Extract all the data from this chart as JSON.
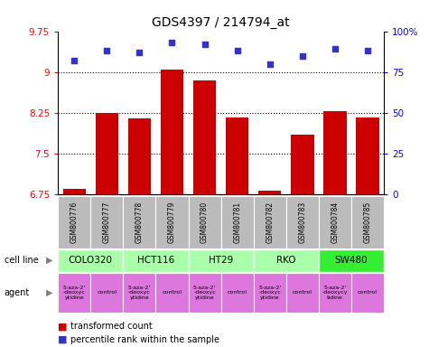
{
  "title": "GDS4397 / 214794_at",
  "samples": [
    "GSM800776",
    "GSM800777",
    "GSM800778",
    "GSM800779",
    "GSM800780",
    "GSM800781",
    "GSM800782",
    "GSM800783",
    "GSM800784",
    "GSM800785"
  ],
  "bar_values": [
    6.85,
    8.25,
    8.15,
    9.05,
    8.85,
    8.17,
    6.82,
    7.85,
    8.28,
    8.17
  ],
  "dot_values": [
    82,
    88,
    87,
    93,
    92,
    88,
    80,
    85,
    89,
    88
  ],
  "ylim_left": [
    6.75,
    9.75
  ],
  "ylim_right": [
    0,
    100
  ],
  "yticks_left": [
    6.75,
    7.5,
    8.25,
    9.0,
    9.75
  ],
  "yticks_right": [
    0,
    25,
    50,
    75,
    100
  ],
  "ytick_labels_left": [
    "6.75",
    "7.5",
    "8.25",
    "9",
    "9.75"
  ],
  "ytick_labels_right": [
    "0",
    "25",
    "50",
    "75",
    "100%"
  ],
  "hlines": [
    9.0,
    8.25,
    7.5
  ],
  "bar_color": "#cc0000",
  "dot_color": "#3333cc",
  "bar_width": 0.7,
  "cell_lines": [
    {
      "name": "COLO320",
      "start": 0,
      "end": 1,
      "color": "#aaffaa"
    },
    {
      "name": "HCT116",
      "start": 2,
      "end": 3,
      "color": "#aaffaa"
    },
    {
      "name": "HT29",
      "start": 4,
      "end": 5,
      "color": "#aaffaa"
    },
    {
      "name": "RKO",
      "start": 6,
      "end": 7,
      "color": "#aaffaa"
    },
    {
      "name": "SW480",
      "start": 8,
      "end": 9,
      "color": "#33ee33"
    }
  ],
  "agents": [
    {
      "name": "5-aza-2'\n-deoxyc\nytidine",
      "color": "#dd77dd",
      "col": 0
    },
    {
      "name": "control",
      "color": "#dd77dd",
      "col": 1
    },
    {
      "name": "5-aza-2'\n-deoxyc\nytidine",
      "color": "#dd77dd",
      "col": 2
    },
    {
      "name": "control",
      "color": "#dd77dd",
      "col": 3
    },
    {
      "name": "5-aza-2'\n-deoxyc\nytidine",
      "color": "#dd77dd",
      "col": 4
    },
    {
      "name": "control",
      "color": "#dd77dd",
      "col": 5
    },
    {
      "name": "5-aza-2'\n-deoxyc\nytidine",
      "color": "#dd77dd",
      "col": 6
    },
    {
      "name": "control",
      "color": "#dd77dd",
      "col": 7
    },
    {
      "name": "5-aza-2'\n-deoxycy\ntidine",
      "color": "#dd77dd",
      "col": 8
    },
    {
      "name": "control",
      "color": "#dd77dd",
      "col": 9
    }
  ],
  "sample_bg_color": "#bbbbbb",
  "legend_red_label": "transformed count",
  "legend_blue_label": "percentile rank within the sample",
  "cell_line_label": "cell line",
  "agent_label": "agent",
  "bar_bottom": 6.75
}
